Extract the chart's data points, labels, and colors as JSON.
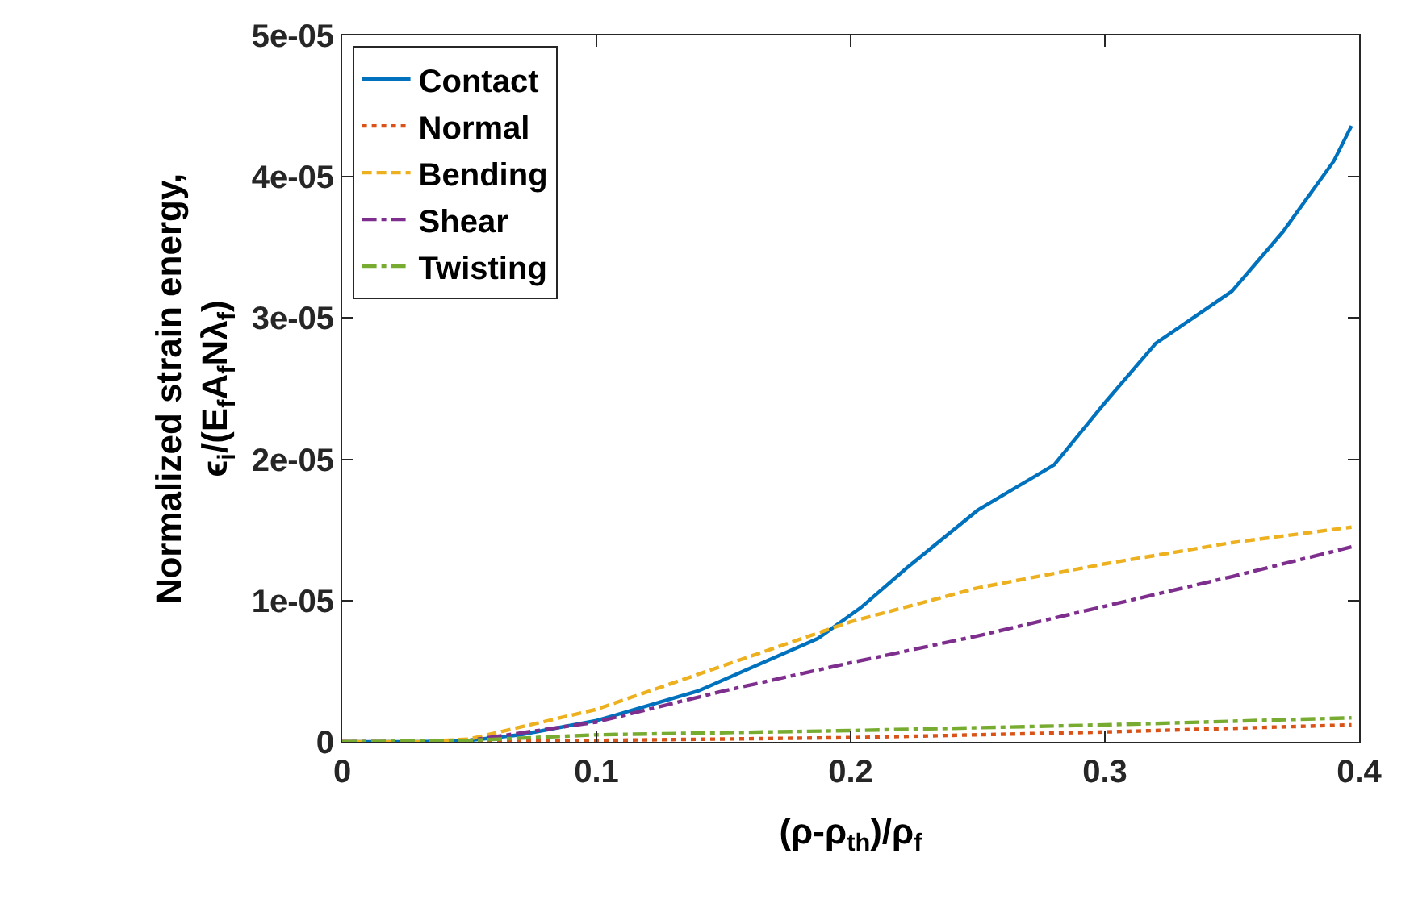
{
  "chart_data": {
    "type": "line",
    "xlabel": "(ρ-ρ$_{th}$)/ρ$_{f}$",
    "ylabel": "Normalized strain energy,\nϵ$_{i}$/(E$_{f}$A$_{f}$Nλ$_{f}$)",
    "xlim": [
      0,
      0.4
    ],
    "xticks": [
      0,
      0.1,
      0.2,
      0.3,
      0.4
    ],
    "ylim": [
      0,
      5e-05
    ],
    "yticks": [
      0,
      {
        "value": 1e-05,
        "label": "1e-05"
      },
      {
        "value": 2e-05,
        "label": "2e-05"
      },
      {
        "value": 3e-05,
        "label": "3e-05"
      },
      {
        "value": 4e-05,
        "label": "4e-05"
      },
      {
        "value": 5e-05,
        "label": "5e-05"
      }
    ],
    "legend": "top left",
    "marker": "none",
    "series": [
      {
        "name": "Contact",
        "color": "#0072bd",
        "line_style": "solid",
        "x": [
          0,
          0.03,
          0.05,
          0.07,
          0.1,
          0.14,
          0.187,
          0.204,
          0.222,
          0.25,
          0.28,
          0.3,
          0.32,
          0.35,
          0.37,
          0.39,
          0.397
        ],
        "values": [
          0,
          0,
          1e-07,
          5e-07,
          1.5e-06,
          3.6e-06,
          7.3e-06,
          9.5e-06,
          1.23e-05,
          1.64e-05,
          1.96e-05,
          2.4e-05,
          2.82e-05,
          3.19e-05,
          3.61e-05,
          4.11e-05,
          4.36e-05
        ]
      },
      {
        "name": "Normal",
        "color": "#d95319",
        "line_style": "dotted",
        "x": [
          0,
          0.05,
          0.1,
          0.2,
          0.3,
          0.397
        ],
        "values": [
          0,
          0,
          1e-07,
          3e-07,
          7e-07,
          1.2e-06
        ]
      },
      {
        "name": "Bending",
        "color": "#edb120",
        "line_style": "dashed",
        "x": [
          0,
          0.03,
          0.05,
          0.1,
          0.15,
          0.2,
          0.25,
          0.3,
          0.35,
          0.397
        ],
        "values": [
          0,
          0,
          2e-07,
          2.3e-06,
          5.4e-06,
          8.5e-06,
          1.09e-05,
          1.26e-05,
          1.41e-05,
          1.52e-05
        ]
      },
      {
        "name": "Shear",
        "color": "#7e2f8e",
        "line_style": "dashdot",
        "x": [
          0,
          0.03,
          0.05,
          0.1,
          0.15,
          0.2,
          0.25,
          0.3,
          0.35,
          0.397
        ],
        "values": [
          0,
          0,
          1e-07,
          1.4e-06,
          3.6e-06,
          5.6e-06,
          7.5e-06,
          9.6e-06,
          1.17e-05,
          1.38e-05
        ]
      },
      {
        "name": "Twisting",
        "color": "#77ac30",
        "line_style": "dashdot",
        "x": [
          0,
          0.05,
          0.1,
          0.2,
          0.3,
          0.397
        ],
        "values": [
          0,
          1e-07,
          5e-07,
          8e-07,
          1.2e-06,
          1.7e-06
        ]
      }
    ]
  }
}
